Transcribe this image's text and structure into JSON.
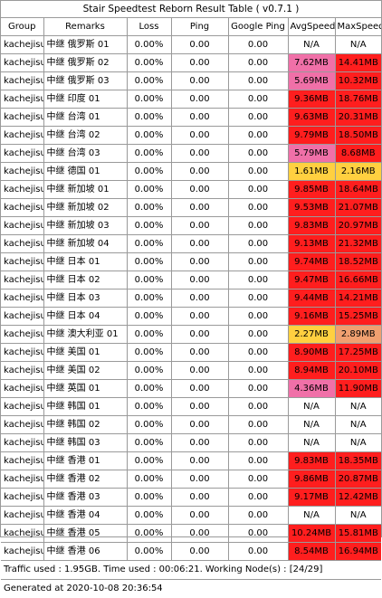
{
  "title": "Stair Speedtest Reborn Result Table ( v0.7.1 )",
  "colors": {
    "white": "#ffffff",
    "pink": "#f070a8",
    "red": "#ff1e1e",
    "yellow": "#ffd040",
    "orange": "#f0a070"
  },
  "columns": [
    "Group",
    "Remarks",
    "Loss",
    "Ping",
    "Google Ping",
    "AvgSpeed",
    "MaxSpeed"
  ],
  "rows": [
    {
      "group": "kachejisu",
      "remarks": "中继 俄罗斯 01",
      "loss": "0.00%",
      "ping": "0.00",
      "gping": "0.00",
      "avg": "N/A",
      "avg_color": "white",
      "max": "N/A",
      "max_color": "white"
    },
    {
      "group": "kachejisu",
      "remarks": "中继 俄罗斯 02",
      "loss": "0.00%",
      "ping": "0.00",
      "gping": "0.00",
      "avg": "7.62MB",
      "avg_color": "pink",
      "max": "14.41MB",
      "max_color": "red"
    },
    {
      "group": "kachejisu",
      "remarks": "中继 俄罗斯 03",
      "loss": "0.00%",
      "ping": "0.00",
      "gping": "0.00",
      "avg": "5.69MB",
      "avg_color": "pink",
      "max": "10.32MB",
      "max_color": "red"
    },
    {
      "group": "kachejisu",
      "remarks": "中继 印度 01",
      "loss": "0.00%",
      "ping": "0.00",
      "gping": "0.00",
      "avg": "9.36MB",
      "avg_color": "red",
      "max": "18.76MB",
      "max_color": "red"
    },
    {
      "group": "kachejisu",
      "remarks": "中继 台湾 01",
      "loss": "0.00%",
      "ping": "0.00",
      "gping": "0.00",
      "avg": "9.63MB",
      "avg_color": "red",
      "max": "20.31MB",
      "max_color": "red"
    },
    {
      "group": "kachejisu",
      "remarks": "中继 台湾 02",
      "loss": "0.00%",
      "ping": "0.00",
      "gping": "0.00",
      "avg": "9.79MB",
      "avg_color": "red",
      "max": "18.50MB",
      "max_color": "red"
    },
    {
      "group": "kachejisu",
      "remarks": "中继 台湾 03",
      "loss": "0.00%",
      "ping": "0.00",
      "gping": "0.00",
      "avg": "5.79MB",
      "avg_color": "pink",
      "max": "8.68MB",
      "max_color": "red"
    },
    {
      "group": "kachejisu",
      "remarks": "中继 德国 01",
      "loss": "0.00%",
      "ping": "0.00",
      "gping": "0.00",
      "avg": "1.61MB",
      "avg_color": "yellow",
      "max": "2.16MB",
      "max_color": "yellow"
    },
    {
      "group": "kachejisu",
      "remarks": "中继 新加坡 01",
      "loss": "0.00%",
      "ping": "0.00",
      "gping": "0.00",
      "avg": "9.85MB",
      "avg_color": "red",
      "max": "18.64MB",
      "max_color": "red"
    },
    {
      "group": "kachejisu",
      "remarks": "中继 新加坡 02",
      "loss": "0.00%",
      "ping": "0.00",
      "gping": "0.00",
      "avg": "9.53MB",
      "avg_color": "red",
      "max": "21.07MB",
      "max_color": "red"
    },
    {
      "group": "kachejisu",
      "remarks": "中继 新加坡 03",
      "loss": "0.00%",
      "ping": "0.00",
      "gping": "0.00",
      "avg": "9.83MB",
      "avg_color": "red",
      "max": "20.97MB",
      "max_color": "red"
    },
    {
      "group": "kachejisu",
      "remarks": "中继 新加坡 04",
      "loss": "0.00%",
      "ping": "0.00",
      "gping": "0.00",
      "avg": "9.13MB",
      "avg_color": "red",
      "max": "21.32MB",
      "max_color": "red"
    },
    {
      "group": "kachejisu",
      "remarks": "中继 日本 01",
      "loss": "0.00%",
      "ping": "0.00",
      "gping": "0.00",
      "avg": "9.74MB",
      "avg_color": "red",
      "max": "18.52MB",
      "max_color": "red"
    },
    {
      "group": "kachejisu",
      "remarks": "中继 日本 02",
      "loss": "0.00%",
      "ping": "0.00",
      "gping": "0.00",
      "avg": "9.47MB",
      "avg_color": "red",
      "max": "16.66MB",
      "max_color": "red"
    },
    {
      "group": "kachejisu",
      "remarks": "中继 日本 03",
      "loss": "0.00%",
      "ping": "0.00",
      "gping": "0.00",
      "avg": "9.44MB",
      "avg_color": "red",
      "max": "14.21MB",
      "max_color": "red"
    },
    {
      "group": "kachejisu",
      "remarks": "中继 日本 04",
      "loss": "0.00%",
      "ping": "0.00",
      "gping": "0.00",
      "avg": "9.16MB",
      "avg_color": "red",
      "max": "15.25MB",
      "max_color": "red"
    },
    {
      "group": "kachejisu",
      "remarks": "中继 澳大利亚 01",
      "loss": "0.00%",
      "ping": "0.00",
      "gping": "0.00",
      "avg": "2.27MB",
      "avg_color": "yellow",
      "max": "2.89MB",
      "max_color": "orange"
    },
    {
      "group": "kachejisu",
      "remarks": "中继 美国 01",
      "loss": "0.00%",
      "ping": "0.00",
      "gping": "0.00",
      "avg": "8.90MB",
      "avg_color": "red",
      "max": "17.25MB",
      "max_color": "red"
    },
    {
      "group": "kachejisu",
      "remarks": "中继 美国 02",
      "loss": "0.00%",
      "ping": "0.00",
      "gping": "0.00",
      "avg": "8.94MB",
      "avg_color": "red",
      "max": "20.10MB",
      "max_color": "red"
    },
    {
      "group": "kachejisu",
      "remarks": "中继 英国 01",
      "loss": "0.00%",
      "ping": "0.00",
      "gping": "0.00",
      "avg": "4.36MB",
      "avg_color": "pink",
      "max": "11.90MB",
      "max_color": "red"
    },
    {
      "group": "kachejisu",
      "remarks": "中继 韩国 01",
      "loss": "0.00%",
      "ping": "0.00",
      "gping": "0.00",
      "avg": "N/A",
      "avg_color": "white",
      "max": "N/A",
      "max_color": "white"
    },
    {
      "group": "kachejisu",
      "remarks": "中继 韩国 02",
      "loss": "0.00%",
      "ping": "0.00",
      "gping": "0.00",
      "avg": "N/A",
      "avg_color": "white",
      "max": "N/A",
      "max_color": "white"
    },
    {
      "group": "kachejisu",
      "remarks": "中继 韩国 03",
      "loss": "0.00%",
      "ping": "0.00",
      "gping": "0.00",
      "avg": "N/A",
      "avg_color": "white",
      "max": "N/A",
      "max_color": "white"
    },
    {
      "group": "kachejisu",
      "remarks": "中继 香港 01",
      "loss": "0.00%",
      "ping": "0.00",
      "gping": "0.00",
      "avg": "9.83MB",
      "avg_color": "red",
      "max": "18.35MB",
      "max_color": "red"
    },
    {
      "group": "kachejisu",
      "remarks": "中继 香港 02",
      "loss": "0.00%",
      "ping": "0.00",
      "gping": "0.00",
      "avg": "9.86MB",
      "avg_color": "red",
      "max": "20.87MB",
      "max_color": "red"
    },
    {
      "group": "kachejisu",
      "remarks": "中继 香港 03",
      "loss": "0.00%",
      "ping": "0.00",
      "gping": "0.00",
      "avg": "9.17MB",
      "avg_color": "red",
      "max": "12.42MB",
      "max_color": "red"
    },
    {
      "group": "kachejisu",
      "remarks": "中继 香港 04",
      "loss": "0.00%",
      "ping": "0.00",
      "gping": "0.00",
      "avg": "N/A",
      "avg_color": "white",
      "max": "N/A",
      "max_color": "white"
    },
    {
      "group": "kachejisu",
      "remarks": "中继 香港 05",
      "loss": "0.00%",
      "ping": "0.00",
      "gping": "0.00",
      "avg": "10.24MB",
      "avg_color": "red",
      "max": "15.81MB",
      "max_color": "red"
    },
    {
      "group": "kachejisu",
      "remarks": "中继 香港 06",
      "loss": "0.00%",
      "ping": "0.00",
      "gping": "0.00",
      "avg": "8.54MB",
      "avg_color": "red",
      "max": "16.94MB",
      "max_color": "red"
    }
  ],
  "footer": {
    "traffic": "Traffic used : 1.95GB. Time used : 00:06:21. Working Node(s) : [24/29]",
    "generated": "Generated at 2020-10-08 20:36:54"
  }
}
